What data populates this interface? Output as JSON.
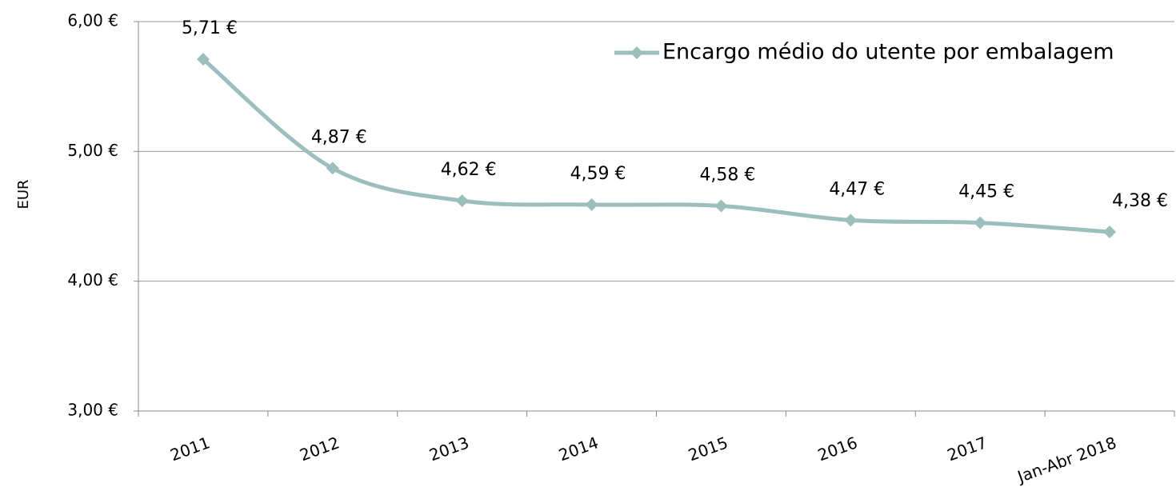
{
  "chart_data": {
    "type": "line",
    "y_label": "EUR",
    "categories": [
      "2011",
      "2012",
      "2013",
      "2014",
      "2015",
      "2016",
      "2017",
      "Jan-Abr 2018"
    ],
    "series": [
      {
        "name": "Encargo médio do utente por embalagem",
        "color": "#9cbebd",
        "values": [
          5.71,
          4.87,
          4.62,
          4.59,
          4.58,
          4.47,
          4.45,
          4.38
        ],
        "value_labels": [
          "5,71 €",
          "4,87 €",
          "4,62 €",
          "4,59 €",
          "4,58 €",
          "4,47 €",
          "4,45 €",
          "4,38 €"
        ]
      }
    ],
    "ylim": [
      3,
      6
    ],
    "yticks": [
      {
        "value": 3,
        "label": "3,00 €"
      },
      {
        "value": 4,
        "label": "4,00 €"
      },
      {
        "value": 5,
        "label": "5,00 €"
      },
      {
        "value": 6,
        "label": "6,00 €"
      }
    ],
    "grid": true,
    "legend": "top-right"
  }
}
